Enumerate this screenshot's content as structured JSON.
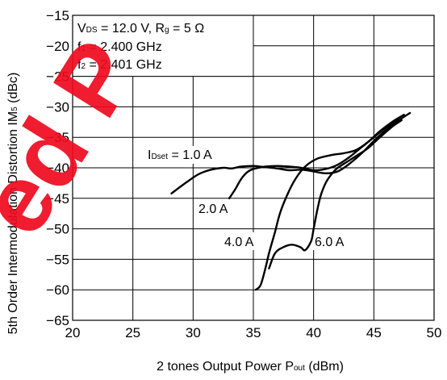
{
  "colors": {
    "watermark": "#ee0a1e",
    "ink": "#000000"
  },
  "watermark": {
    "text": "ed P"
  },
  "chart_data": {
    "type": "line",
    "grid": true,
    "xlim": [
      20,
      50
    ],
    "ylim": [
      -65,
      -15
    ],
    "xticks": [
      "20",
      "25",
      "30",
      "35",
      "40",
      "45",
      "50"
    ],
    "yticks": [
      "−15",
      "−20",
      "−25",
      "−30",
      "−35",
      "−40",
      "−45",
      "−50",
      "−55",
      "−60",
      "−65"
    ],
    "xlabel": {
      "main": "2 tones Output Power  P",
      "sub": "out",
      "unit": " (dBm)"
    },
    "ylabel": {
      "main": "5th Order Intermodulation Distortion  IM",
      "sub": "5",
      "unit": " (dBc)"
    },
    "conditions": {
      "line1": {
        "v": "V",
        "v_sub": "DS",
        "v_val": " = 12.0 V, R",
        "r_sub": "g",
        "r_val": " = 5 Ω"
      },
      "line2": {
        "f": "f",
        "f_sub": "1",
        "f_val": " = 2.400 GHz"
      },
      "line3": {
        "f": "f",
        "f_sub": "2",
        "f_val": " = 2.401 GHz"
      }
    },
    "series": [
      {
        "name": "1.0 A",
        "label_prefix": "I",
        "label_sub": "Dset",
        "label_mid": " = ",
        "points": [
          [
            28.2,
            -44.2
          ],
          [
            29.5,
            -42.3
          ],
          [
            30.5,
            -41.0
          ],
          [
            31.5,
            -40.3
          ],
          [
            32.5,
            -40.0
          ],
          [
            33.2,
            -40.1
          ],
          [
            34.0,
            -39.8
          ],
          [
            35.0,
            -39.7
          ],
          [
            36.0,
            -39.9
          ],
          [
            37.0,
            -40.1
          ],
          [
            38.0,
            -40.4
          ],
          [
            39.0,
            -40.3
          ],
          [
            40.0,
            -40.6
          ],
          [
            41.0,
            -40.9
          ],
          [
            42.0,
            -40.6
          ],
          [
            43.0,
            -39.3
          ],
          [
            44.0,
            -37.6
          ],
          [
            45.0,
            -35.6
          ],
          [
            46.0,
            -33.8
          ],
          [
            47.0,
            -32.3
          ],
          [
            48.0,
            -31.0
          ]
        ]
      },
      {
        "name": "2.0 A",
        "points": [
          [
            33.0,
            -45.0
          ],
          [
            33.5,
            -43.5
          ],
          [
            34.0,
            -41.8
          ],
          [
            34.5,
            -40.7
          ],
          [
            35.0,
            -40.2
          ],
          [
            36.0,
            -39.8
          ],
          [
            37.0,
            -39.7
          ],
          [
            38.0,
            -39.8
          ],
          [
            39.0,
            -40.0
          ],
          [
            40.0,
            -40.4
          ],
          [
            41.0,
            -40.2
          ],
          [
            42.0,
            -39.5
          ],
          [
            43.0,
            -38.2
          ],
          [
            44.0,
            -36.6
          ],
          [
            45.0,
            -35.0
          ],
          [
            46.0,
            -33.4
          ],
          [
            47.0,
            -32.0
          ]
        ]
      },
      {
        "name": "4.0 A",
        "points": [
          [
            35.2,
            -60.0
          ],
          [
            35.6,
            -59.2
          ],
          [
            36.0,
            -56.5
          ],
          [
            36.3,
            -54.0
          ],
          [
            36.8,
            -50.5
          ],
          [
            37.2,
            -47.5
          ],
          [
            37.8,
            -44.5
          ],
          [
            38.5,
            -41.8
          ],
          [
            39.3,
            -39.8
          ],
          [
            40.3,
            -38.5
          ],
          [
            41.5,
            -37.9
          ],
          [
            42.5,
            -37.6
          ],
          [
            43.5,
            -37.1
          ],
          [
            44.5,
            -35.8
          ],
          [
            45.5,
            -34.0
          ],
          [
            46.5,
            -32.5
          ],
          [
            47.5,
            -31.3
          ]
        ]
      },
      {
        "name": "6.0 A",
        "points": [
          [
            36.3,
            -56.5
          ],
          [
            36.8,
            -54.0
          ],
          [
            37.5,
            -53.0
          ],
          [
            38.2,
            -52.6
          ],
          [
            38.9,
            -53.0
          ],
          [
            39.3,
            -53.5
          ],
          [
            39.8,
            -52.0
          ],
          [
            40.0,
            -50.0
          ],
          [
            40.3,
            -47.0
          ],
          [
            40.6,
            -44.5
          ],
          [
            41.0,
            -42.5
          ],
          [
            41.5,
            -41.0
          ],
          [
            42.0,
            -40.0
          ],
          [
            42.8,
            -39.0
          ],
          [
            43.5,
            -38.1
          ],
          [
            44.5,
            -36.8
          ],
          [
            45.5,
            -35.0
          ],
          [
            46.5,
            -33.3
          ],
          [
            47.3,
            -32.2
          ]
        ]
      }
    ]
  }
}
